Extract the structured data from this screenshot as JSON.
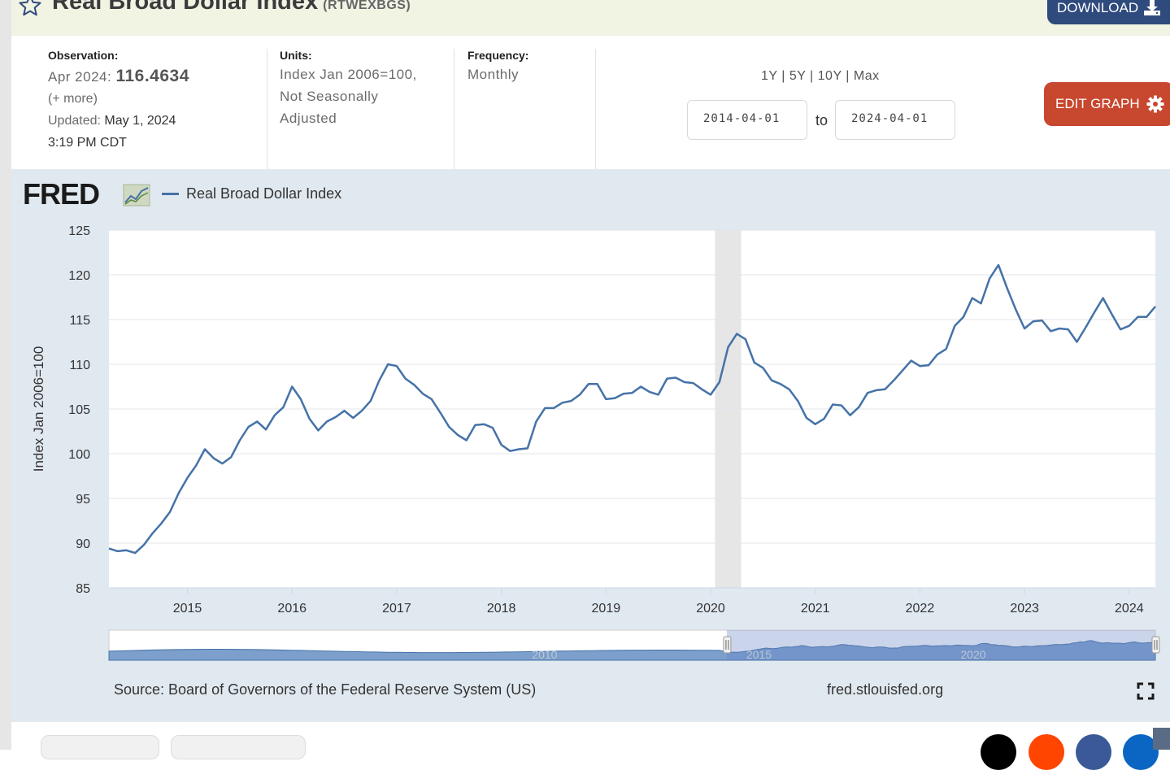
{
  "header": {
    "title": "Real Broad Dollar Index",
    "series_id": "(RTWEXBGS)",
    "download_label": "DOWNLOAD"
  },
  "meta": {
    "observation_label": "Observation:",
    "observation_period": "Apr 2024:",
    "observation_value": "116.4634",
    "more_link": "(+ more)",
    "updated_label": "Updated:",
    "updated_date": "May 1, 2024",
    "updated_time": "3:19 PM CDT",
    "units_label": "Units:",
    "units_line1": "Index Jan 2006=100,",
    "units_line2": "Not Seasonally",
    "units_line3": "Adjusted",
    "frequency_label": "Frequency:",
    "frequency_value": "Monthly"
  },
  "range": {
    "links": [
      "1Y",
      "5Y",
      "10Y",
      "Max"
    ],
    "separator": " | ",
    "start_date": "2014-04-01",
    "to_label": "to",
    "end_date": "2024-04-01",
    "edit_label": "EDIT GRAPH"
  },
  "chart": {
    "logo_text": "FRED",
    "source": "Source: Board of Governors of the Federal Reserve System (US)",
    "url": "fred.stlouisfed.org",
    "navigator_labels": [
      "2010",
      "2015",
      "2020"
    ]
  },
  "chart_data": {
    "type": "line",
    "title": "",
    "xlabel": "",
    "ylabel": "Index Jan 2006=100",
    "ylim": [
      85,
      125
    ],
    "yticks": [
      85,
      90,
      95,
      100,
      105,
      110,
      115,
      120,
      125
    ],
    "xticks": [
      "2015",
      "2016",
      "2017",
      "2018",
      "2019",
      "2020",
      "2021",
      "2022",
      "2023",
      "2024"
    ],
    "recession": [
      "2020-02",
      "2020-04"
    ],
    "color": "#4572a7",
    "grid": true,
    "series": [
      {
        "name": "Real Broad Dollar Index",
        "x": [
          "2014-04",
          "2014-05",
          "2014-06",
          "2014-07",
          "2014-08",
          "2014-09",
          "2014-10",
          "2014-11",
          "2014-12",
          "2015-01",
          "2015-02",
          "2015-03",
          "2015-04",
          "2015-05",
          "2015-06",
          "2015-07",
          "2015-08",
          "2015-09",
          "2015-10",
          "2015-11",
          "2015-12",
          "2016-01",
          "2016-02",
          "2016-03",
          "2016-04",
          "2016-05",
          "2016-06",
          "2016-07",
          "2016-08",
          "2016-09",
          "2016-10",
          "2016-11",
          "2016-12",
          "2017-01",
          "2017-02",
          "2017-03",
          "2017-04",
          "2017-05",
          "2017-06",
          "2017-07",
          "2017-08",
          "2017-09",
          "2017-10",
          "2017-11",
          "2017-12",
          "2018-01",
          "2018-02",
          "2018-03",
          "2018-04",
          "2018-05",
          "2018-06",
          "2018-07",
          "2018-08",
          "2018-09",
          "2018-10",
          "2018-11",
          "2018-12",
          "2019-01",
          "2019-02",
          "2019-03",
          "2019-04",
          "2019-05",
          "2019-06",
          "2019-07",
          "2019-08",
          "2019-09",
          "2019-10",
          "2019-11",
          "2019-12",
          "2020-01",
          "2020-02",
          "2020-03",
          "2020-04",
          "2020-05",
          "2020-06",
          "2020-07",
          "2020-08",
          "2020-09",
          "2020-10",
          "2020-11",
          "2020-12",
          "2021-01",
          "2021-02",
          "2021-03",
          "2021-04",
          "2021-05",
          "2021-06",
          "2021-07",
          "2021-08",
          "2021-09",
          "2021-10",
          "2021-11",
          "2021-12",
          "2022-01",
          "2022-02",
          "2022-03",
          "2022-04",
          "2022-05",
          "2022-06",
          "2022-07",
          "2022-08",
          "2022-09",
          "2022-10",
          "2022-11",
          "2022-12",
          "2023-01",
          "2023-02",
          "2023-03",
          "2023-04",
          "2023-05",
          "2023-06",
          "2023-07",
          "2023-08",
          "2023-09",
          "2023-10",
          "2023-11",
          "2023-12",
          "2024-01",
          "2024-02",
          "2024-03",
          "2024-04"
        ],
        "values": [
          89.4,
          89.1,
          89.2,
          88.9,
          89.8,
          91.1,
          92.2,
          93.5,
          95.6,
          97.3,
          98.7,
          100.5,
          99.5,
          98.9,
          99.6,
          101.5,
          103.0,
          103.6,
          102.7,
          104.3,
          105.2,
          107.5,
          106.1,
          103.9,
          102.6,
          103.6,
          104.1,
          104.8,
          104.0,
          104.8,
          105.9,
          108.2,
          110.0,
          109.8,
          108.4,
          107.7,
          106.7,
          106.1,
          104.6,
          103.0,
          102.1,
          101.5,
          103.2,
          103.3,
          102.9,
          101.0,
          100.3,
          100.5,
          100.6,
          103.6,
          105.1,
          105.1,
          105.7,
          105.9,
          106.6,
          107.8,
          107.8,
          106.1,
          106.2,
          106.7,
          106.8,
          107.5,
          106.9,
          106.6,
          108.4,
          108.5,
          108.0,
          107.9,
          107.2,
          106.6,
          108.0,
          111.9,
          113.4,
          112.8,
          110.2,
          109.6,
          108.2,
          107.8,
          107.2,
          105.9,
          104.0,
          103.3,
          103.9,
          105.5,
          105.4,
          104.3,
          105.2,
          106.8,
          107.1,
          107.2,
          108.2,
          109.3,
          110.4,
          109.8,
          109.9,
          111.1,
          111.7,
          114.3,
          115.3,
          117.4,
          116.8,
          119.6,
          121.1,
          118.5,
          116.1,
          114.0,
          114.8,
          114.9,
          113.7,
          114.0,
          113.9,
          112.5,
          114.1,
          115.8,
          117.4,
          115.6,
          113.9,
          114.3,
          115.3,
          115.3,
          116.4634
        ]
      }
    ]
  }
}
